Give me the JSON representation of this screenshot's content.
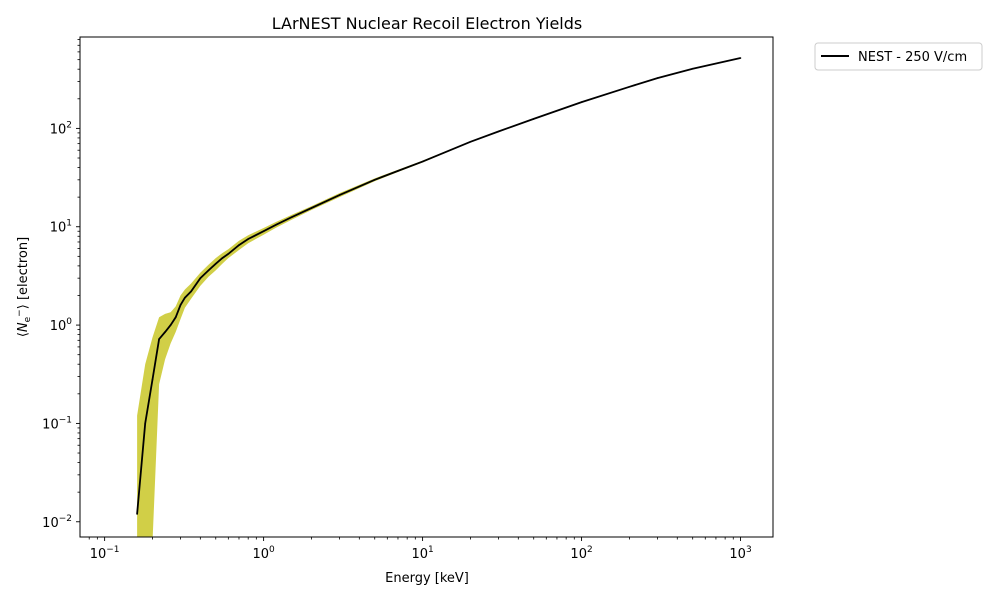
{
  "chart_data": {
    "type": "line",
    "title": "LArNEST Nuclear Recoil Electron Yields",
    "xlabel": "Energy [keV]",
    "ylabel_parts": {
      "open": "⟨",
      "var": "N",
      "sub": "e",
      "sup": "−",
      "close": "⟩ [electron]"
    },
    "xscale": "log",
    "yscale": "log",
    "xlim": [
      0.07,
      1600
    ],
    "ylim": [
      0.007,
      850
    ],
    "xtick_labels": [
      {
        "base": "10",
        "exp": "−1",
        "value": 0.1
      },
      {
        "base": "10",
        "exp": "0",
        "value": 1
      },
      {
        "base": "10",
        "exp": "1",
        "value": 10
      },
      {
        "base": "10",
        "exp": "2",
        "value": 100
      },
      {
        "base": "10",
        "exp": "3",
        "value": 1000
      }
    ],
    "ytick_labels": [
      {
        "base": "10",
        "exp": "−2",
        "value": 0.01
      },
      {
        "base": "10",
        "exp": "−1",
        "value": 0.1
      },
      {
        "base": "10",
        "exp": "0",
        "value": 1
      },
      {
        "base": "10",
        "exp": "1",
        "value": 10
      },
      {
        "base": "10",
        "exp": "2",
        "value": 100
      }
    ],
    "grid": false,
    "legend_placement": "outside-top-right",
    "series": [
      {
        "name": "NEST - 250 V/cm",
        "color": "#000000",
        "x": [
          0.16,
          0.18,
          0.2,
          0.22,
          0.24,
          0.26,
          0.28,
          0.3,
          0.32,
          0.35,
          0.4,
          0.45,
          0.5,
          0.55,
          0.6,
          0.7,
          0.8,
          1.0,
          1.2,
          1.5,
          2.0,
          3.0,
          5.0,
          7.0,
          10,
          20,
          30,
          50,
          100,
          200,
          300,
          500,
          1000
        ],
        "y": [
          0.012,
          0.1,
          0.28,
          0.72,
          0.85,
          1.0,
          1.2,
          1.6,
          1.9,
          2.2,
          3.0,
          3.6,
          4.2,
          4.8,
          5.3,
          6.5,
          7.5,
          9.0,
          10.5,
          12.5,
          15.5,
          21,
          30,
          37,
          46,
          73,
          93,
          125,
          185,
          265,
          325,
          405,
          520
        ]
      }
    ],
    "band": {
      "color": "#cfcc3d",
      "x": [
        0.16,
        0.18,
        0.2,
        0.22,
        0.24,
        0.26,
        0.28,
        0.3,
        0.32,
        0.35,
        0.4,
        0.45,
        0.5,
        0.55,
        0.6,
        0.7,
        0.8,
        1.0,
        1.2,
        1.5,
        2.0,
        3.0,
        5.0,
        7.0,
        10,
        20,
        30,
        50,
        100,
        200,
        300,
        500,
        1000
      ],
      "lower": [
        0.0,
        0.0,
        0.0,
        0.25,
        0.45,
        0.65,
        0.85,
        1.15,
        1.5,
        1.85,
        2.5,
        3.1,
        3.6,
        4.2,
        4.8,
        5.8,
        6.8,
        8.3,
        9.8,
        11.8,
        14.8,
        20,
        29,
        36,
        45,
        72,
        92,
        124,
        183,
        263,
        322,
        402,
        516
      ],
      "upper": [
        0.12,
        0.4,
        0.75,
        1.2,
        1.3,
        1.35,
        1.55,
        2.0,
        2.3,
        2.65,
        3.4,
        4.1,
        4.8,
        5.4,
        5.9,
        7.2,
        8.2,
        9.7,
        11.2,
        13.2,
        16.2,
        22,
        31,
        38,
        47,
        74,
        94,
        126,
        187,
        267,
        328,
        408,
        524
      ]
    }
  }
}
